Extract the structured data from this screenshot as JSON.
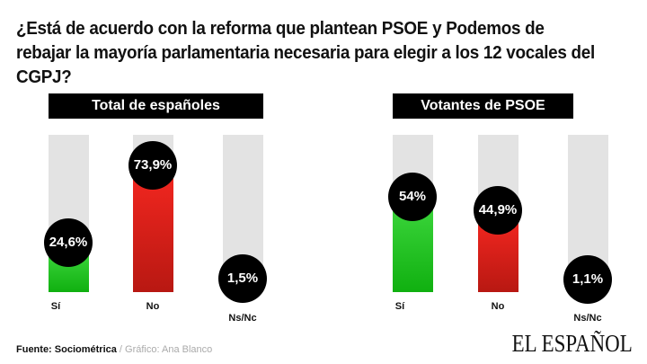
{
  "title": "¿Está de acuerdo con la reforma que plantean PSOE y Podemos de rebajar la mayoría parlamentaria necesaria para elegir a los 12 vocales del CGPJ?",
  "chart_data": [
    {
      "type": "bar",
      "title": "Total de españoles",
      "categories": [
        "Sí",
        "No",
        "Ns/Nc"
      ],
      "values": [
        24.6,
        73.9,
        1.5
      ],
      "labels": [
        "24,6%",
        "73,9%",
        "1,5%"
      ],
      "colors": [
        "#22c322",
        "#e0201c",
        "#e3e3e3"
      ],
      "ylim": [
        0,
        100
      ]
    },
    {
      "type": "bar",
      "title": "Votantes de PSOE",
      "categories": [
        "Sí",
        "No",
        "Ns/Nc"
      ],
      "values": [
        54,
        44.9,
        1.1
      ],
      "labels": [
        "54%",
        "44,9%",
        "1,1%"
      ],
      "colors": [
        "#22c322",
        "#e0201c",
        "#e3e3e3"
      ],
      "ylim": [
        0,
        100
      ]
    }
  ],
  "footer": {
    "source": "Fuente: Sociométrica",
    "separator": " / ",
    "credit": "Gráfico: Ana Blanco"
  },
  "logo": "EL ESPAÑOL"
}
